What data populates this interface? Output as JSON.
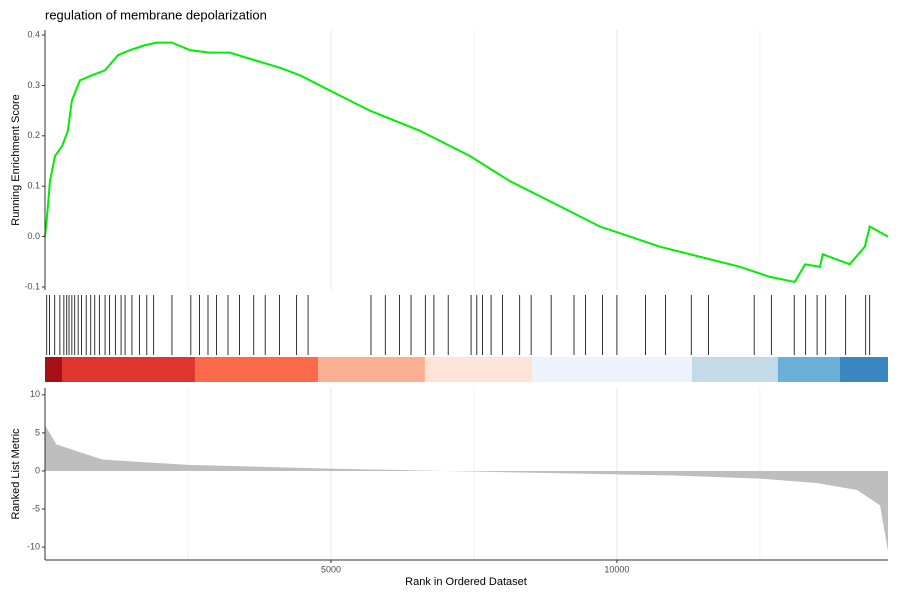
{
  "chart_data": [
    {
      "type": "line",
      "title": "regulation of membrane depolarization",
      "y_label": "Running Enrichment Score",
      "color": "#00ee00",
      "xlim": [
        0,
        14740
      ],
      "ylim": [
        -0.106,
        0.41
      ],
      "yticks": [
        0.4,
        0.3,
        0.2,
        0.1,
        {
          "value": 0,
          "label": "0.0"
        },
        -0.1
      ],
      "xticks": [
        5000,
        10000
      ],
      "x_minor_ticks": [
        2500,
        7500,
        12500
      ],
      "x": [
        0,
        35,
        87,
        175,
        300,
        400,
        470,
        610,
        820,
        1050,
        1275,
        1485,
        1750,
        1960,
        2220,
        2535,
        2885,
        3235,
        3670,
        4110,
        4460,
        4980,
        5680,
        6555,
        7430,
        8130,
        8655,
        9180,
        9700,
        10230,
        10750,
        11450,
        12150,
        12675,
        13110,
        13290,
        13550,
        13600,
        14070,
        14335,
        14420,
        14740
      ],
      "values": [
        0,
        0.04,
        0.11,
        0.16,
        0.18,
        0.21,
        0.27,
        0.31,
        0.32,
        0.33,
        0.36,
        0.37,
        0.38,
        0.385,
        0.385,
        0.37,
        0.365,
        0.365,
        0.35,
        0.335,
        0.32,
        0.29,
        0.25,
        0.21,
        0.16,
        0.11,
        0.08,
        0.05,
        0.02,
        0,
        -0.02,
        -0.04,
        -0.06,
        -0.08,
        -0.09,
        -0.055,
        -0.06,
        -0.035,
        -0.055,
        -0.02,
        0.02,
        0
      ]
    },
    {
      "type": "hits",
      "xlim": [
        0,
        14740
      ],
      "hits": [
        30,
        80,
        170,
        260,
        330,
        380,
        420,
        470,
        520,
        580,
        640,
        720,
        800,
        870,
        950,
        1050,
        1130,
        1230,
        1330,
        1400,
        1520,
        1650,
        1780,
        1900,
        2220,
        2550,
        2700,
        2850,
        3000,
        3200,
        3400,
        3650,
        3850,
        4100,
        4400,
        4600,
        5700,
        5950,
        6200,
        6400,
        6650,
        6800,
        7050,
        7450,
        7550,
        7650,
        7800,
        8000,
        8300,
        8500,
        8850,
        9250,
        9450,
        9750,
        10000,
        10500,
        10850,
        11300,
        11600,
        12400,
        12700,
        13100,
        13300,
        13500,
        13650,
        14000,
        14350,
        14420
      ],
      "bands": [
        {
          "from": 0,
          "to": 297,
          "color": "#a50f15"
        },
        {
          "from": 297,
          "to": 2622,
          "color": "#e0342f"
        },
        {
          "from": 2622,
          "to": 4773,
          "color": "#f9694a"
        },
        {
          "from": 4773,
          "to": 6643,
          "color": "#fcae91"
        },
        {
          "from": 6643,
          "to": 8514,
          "color": "#fde4d7"
        },
        {
          "from": 8514,
          "to": 11311,
          "color": "#edf3fc"
        },
        {
          "from": 11311,
          "to": 12815,
          "color": "#c3dae8"
        },
        {
          "from": 12815,
          "to": 13899,
          "color": "#6baed6"
        },
        {
          "from": 13899,
          "to": 14740,
          "color": "#3a86c0"
        }
      ]
    },
    {
      "type": "area",
      "y_label": "Ranked List Metric",
      "x_label": "Rank in Ordered Dataset",
      "color": "#bebebe",
      "xlim": [
        0,
        14740
      ],
      "ylim": [
        -11.7,
        10.9
      ],
      "yticks": [
        10,
        5,
        0,
        -5,
        -10
      ],
      "xticks": [
        5000,
        10000
      ],
      "x_minor_ticks": [
        2500,
        7500,
        12500
      ],
      "x": [
        0,
        200,
        1000,
        2500,
        5000,
        7000,
        9000,
        11000,
        12500,
        13500,
        14200,
        14600,
        14740
      ],
      "values": [
        6.0,
        3.5,
        1.5,
        0.8,
        0.3,
        0,
        -0.3,
        -0.6,
        -1.0,
        -1.6,
        -2.5,
        -4.5,
        -10.5
      ]
    }
  ]
}
